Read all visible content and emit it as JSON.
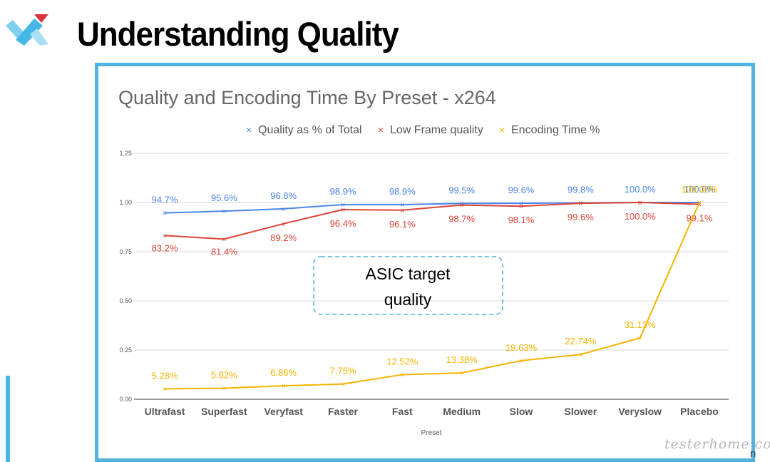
{
  "slide": {
    "title": "Understanding Quality",
    "logo_icon": "brand-logo-icon",
    "watermark": "testerhome.com",
    "watermark_tail": "n"
  },
  "colors": {
    "frame": "#4fb3dd",
    "quality": "#4a86e8",
    "low_frame": "#db4437",
    "encoding": "#f4b400",
    "annotation": "#4fb3dd"
  },
  "chart_data": {
    "type": "line",
    "title": "Quality and Encoding Time By Preset - x264",
    "xlabel": "Preset",
    "ylabel": "",
    "ylim": [
      0,
      1.25
    ],
    "yticks": [
      "0.00",
      "0.25",
      "0.50",
      "0.75",
      "1.00",
      "1.25"
    ],
    "grid": true,
    "legend": "top",
    "categories": [
      "Ultrafast",
      "Superfast",
      "Veryfast",
      "Faster",
      "Fast",
      "Medium",
      "Slow",
      "Slower",
      "Veryslow",
      "Placebo"
    ],
    "series": [
      {
        "name": "Quality as % of Total",
        "color": "#4a86e8",
        "values": [
          0.947,
          0.956,
          0.968,
          0.989,
          0.989,
          0.995,
          0.996,
          0.998,
          1.0,
          1.0
        ],
        "labels": [
          "94.7%",
          "95.6%",
          "96.8%",
          "98.9%",
          "98.9%",
          "99.5%",
          "99.6%",
          "99.8%",
          "100.0%",
          "100.0%"
        ]
      },
      {
        "name": "Low Frame quality",
        "color": "#db4437",
        "values": [
          0.832,
          0.814,
          0.892,
          0.964,
          0.961,
          0.987,
          0.981,
          0.996,
          1.0,
          0.991
        ],
        "labels": [
          "83.2%",
          "81.4%",
          "89.2%",
          "96.4%",
          "96.1%",
          "98.7%",
          "98.1%",
          "99.6%",
          "100.0%",
          "99.1%"
        ]
      },
      {
        "name": "Encoding Time %",
        "color": "#f4b400",
        "values": [
          0.0528,
          0.0562,
          0.0686,
          0.0775,
          0.1252,
          0.1338,
          0.1963,
          0.2274,
          0.3113,
          1.0
        ],
        "labels": [
          "5.28%",
          "5.62%",
          "6.86%",
          "7.75%",
          "12.52%",
          "13.38%",
          "19.63%",
          "22.74%",
          "31.13%",
          "100.00%"
        ]
      }
    ],
    "annotation": {
      "text_line1": "ASIC target",
      "text_line2": "quality"
    }
  }
}
